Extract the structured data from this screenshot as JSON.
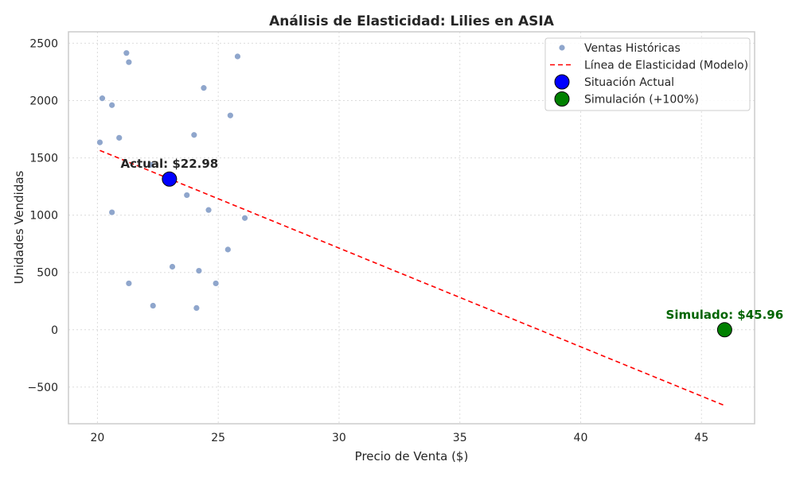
{
  "chart_data": {
    "type": "scatter",
    "title": "Análisis de Elasticidad: Lilies en ASIA",
    "xlabel": "Precio de Venta ($)",
    "ylabel": "Unidades Vendidas",
    "xlim": [
      18.8,
      47.2
    ],
    "ylim": [
      -820,
      2600
    ],
    "xticks": [
      20,
      25,
      30,
      35,
      40,
      45
    ],
    "yticks": [
      -500,
      0,
      500,
      1000,
      1500,
      2000,
      2500
    ],
    "xtick_labels": [
      "20",
      "25",
      "30",
      "35",
      "40",
      "45"
    ],
    "ytick_labels": [
      "−500",
      "0",
      "500",
      "1000",
      "1500",
      "2000",
      "2500"
    ],
    "grid": true,
    "legend_position": "top-right",
    "series": [
      {
        "name": "Ventas Históricas",
        "kind": "scatter",
        "color": "#8fa6cc",
        "points": [
          [
            21.2,
            2415
          ],
          [
            21.3,
            2335
          ],
          [
            25.8,
            2385
          ],
          [
            24.4,
            2110
          ],
          [
            20.2,
            2020
          ],
          [
            20.6,
            1960
          ],
          [
            25.5,
            1870
          ],
          [
            20.9,
            1675
          ],
          [
            24.0,
            1700
          ],
          [
            20.1,
            1635
          ],
          [
            22.2,
            1440
          ],
          [
            23.7,
            1175
          ],
          [
            20.6,
            1025
          ],
          [
            24.6,
            1045
          ],
          [
            26.1,
            975
          ],
          [
            25.4,
            700
          ],
          [
            23.1,
            550
          ],
          [
            24.2,
            515
          ],
          [
            21.3,
            405
          ],
          [
            24.9,
            405
          ],
          [
            22.3,
            210
          ],
          [
            24.1,
            190
          ]
        ]
      },
      {
        "name": "Línea de Elasticidad (Modelo)",
        "kind": "line",
        "color": "#ff0000",
        "points": [
          [
            20.1,
            1565
          ],
          [
            46.0,
            -665
          ]
        ]
      },
      {
        "name": "Situación Actual",
        "kind": "marker",
        "color": "#0000ff",
        "points": [
          [
            22.98,
            1315
          ]
        ]
      },
      {
        "name": "Simulación (+100%)",
        "kind": "marker",
        "color": "#008000",
        "points": [
          [
            45.96,
            0
          ]
        ]
      }
    ],
    "annotations": [
      {
        "text": "Actual: $22.98",
        "x": 22.98,
        "y": 1315,
        "color": "#262626"
      },
      {
        "text": "Simulado: $45.96",
        "x": 45.96,
        "y": 0,
        "color": "#006400"
      }
    ]
  }
}
